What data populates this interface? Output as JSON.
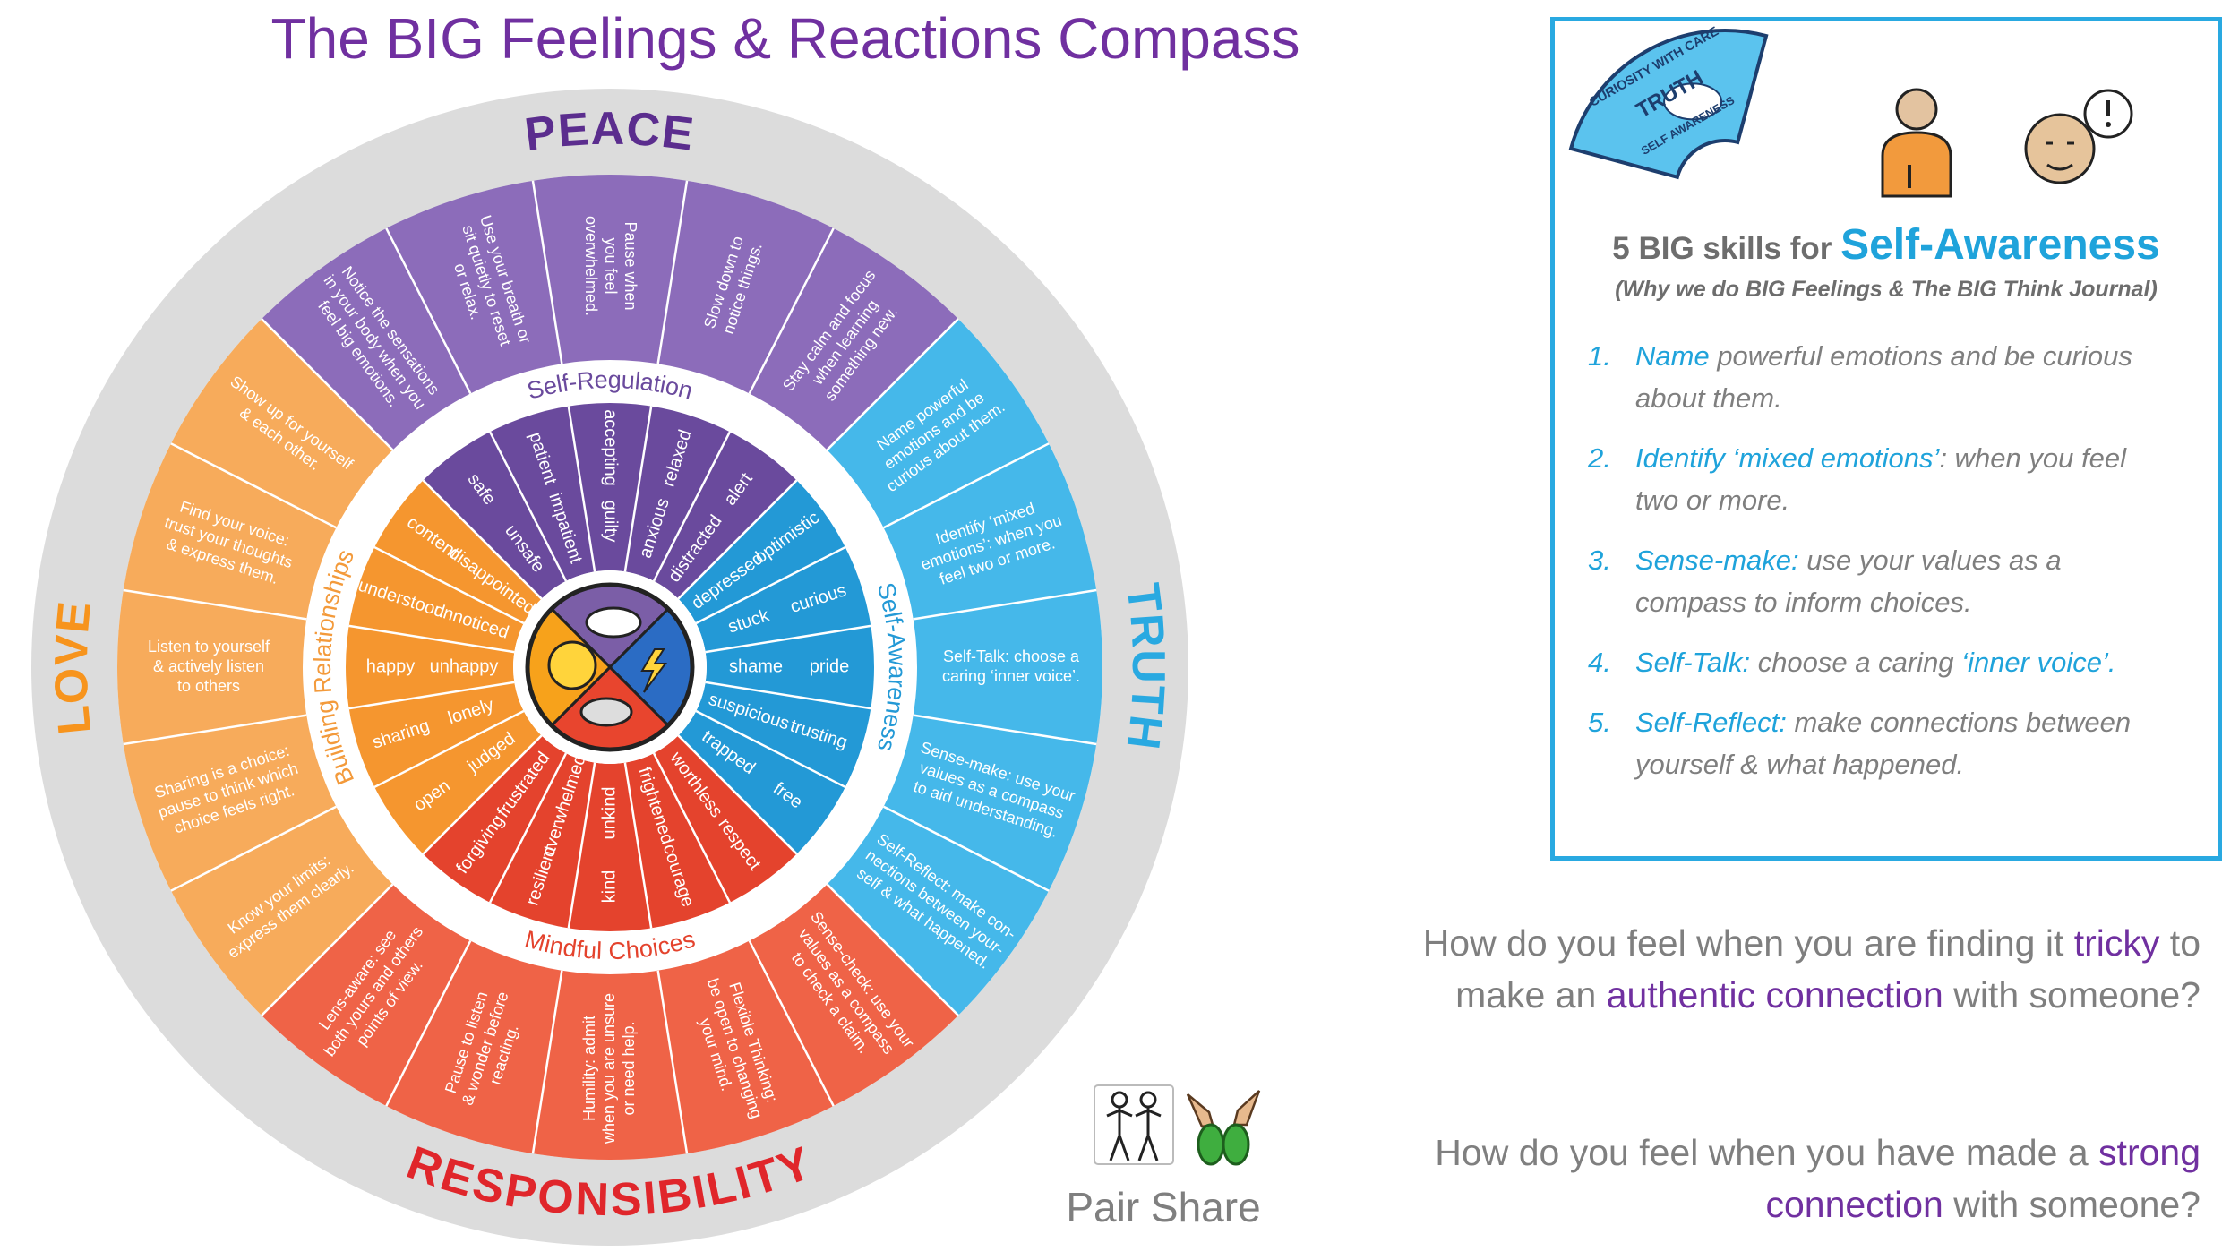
{
  "title": "The BIG Feelings & Reactions Compass",
  "compass": {
    "quadrants": [
      {
        "direction": "PEACE",
        "label": "Self-Regulation",
        "feelings": [
          {
            "outer": "safe",
            "inner": "unsafe"
          },
          {
            "outer": "patient",
            "inner": "impatient"
          },
          {
            "outer": "accepting",
            "inner": "guilty"
          },
          {
            "outer": "relaxed",
            "inner": "anxious"
          },
          {
            "outer": "alert",
            "inner": "distracted"
          }
        ],
        "skills": [
          [
            "Notice the sensations",
            "in your body when you",
            "feel big emotions."
          ],
          [
            "Use your breath or",
            "sit quietly to reset",
            "or relax."
          ],
          [
            "Pause when",
            "you feel",
            "overwhelmed."
          ],
          [
            "Slow down to",
            "notice things."
          ],
          [
            "Stay calm and focus",
            "when learning",
            "something new."
          ]
        ]
      },
      {
        "direction": "TRUTH",
        "label": "Self-Awareness",
        "feelings": [
          {
            "outer": "optimistic",
            "inner": "depressed"
          },
          {
            "outer": "curious",
            "inner": "stuck"
          },
          {
            "outer": "pride",
            "inner": "shame"
          },
          {
            "outer": "trusting",
            "inner": "suspicious"
          },
          {
            "outer": "free",
            "inner": "trapped"
          }
        ],
        "skills": [
          [
            "Name powerful",
            "emotions and be",
            "curious about them."
          ],
          [
            "Identify ‘mixed",
            "emotions’: when you",
            "feel two or more."
          ],
          [
            "Self-Talk: choose a",
            "caring ‘inner voice’."
          ],
          [
            "Sense-make: use your",
            "values as a compass",
            "to aid understanding."
          ],
          [
            "Self-Reflect: make con-",
            "nections between your-",
            "self & what happened."
          ]
        ]
      },
      {
        "direction": "RESPONSIBILITY",
        "label": "Mindful Choices",
        "feelings": [
          {
            "outer": "respect",
            "inner": "worthless"
          },
          {
            "outer": "courage",
            "inner": "frightened"
          },
          {
            "outer": "kind",
            "inner": "unkind"
          },
          {
            "outer": "resilient",
            "inner": "overwhelmed"
          },
          {
            "outer": "forgiving",
            "inner": "frustrated"
          }
        ],
        "skills": [
          [
            "Sense-check: use your",
            "values as a compass",
            "to check a claim."
          ],
          [
            "Flexible Thinking:",
            "be open to changing",
            "your mind."
          ],
          [
            "Humility: admit",
            "when you are unsure",
            "or need help."
          ],
          [
            "Pause to listen",
            "& wonder before",
            "reacting."
          ],
          [
            "Lens-aware: see",
            "both yours and others",
            "points of view."
          ]
        ]
      },
      {
        "direction": "LOVE",
        "label": "Building Relationships",
        "feelings": [
          {
            "outer": "open",
            "inner": "judged"
          },
          {
            "outer": "sharing",
            "inner": "lonely"
          },
          {
            "outer": "happy",
            "inner": "unhappy"
          },
          {
            "outer": "understood",
            "inner": "unnoticed"
          },
          {
            "outer": "content",
            "inner": "disappointed"
          }
        ],
        "skills": [
          [
            "Know your limits:",
            "express them clearly."
          ],
          [
            "Sharing is a choice:",
            "pause to think which",
            "choice feels right."
          ],
          [
            "Listen to yourself",
            "& actively listen",
            "to others"
          ],
          [
            "Find your voice:",
            "trust your thoughts",
            "& express them."
          ],
          [
            "Show up for yourself",
            "& each other."
          ]
        ]
      }
    ]
  },
  "panel": {
    "badge": [
      "CURIOSITY WITH CARE",
      "TRUTH",
      "SELF AWARENESS"
    ],
    "heading": "5 BIG skills for",
    "heading_accent": "Self-Awareness",
    "subheading": "(Why we do BIG Feelings &  The BIG Think Journal)",
    "items": [
      {
        "number": "1.",
        "segments": [
          {
            "text": "Name",
            "accent": true
          },
          {
            "text": " powerful emotions and be curious about them."
          }
        ]
      },
      {
        "number": "2.",
        "segments": [
          {
            "text": "Identify ‘mixed emotions’",
            "accent": true
          },
          {
            "text": ": when you feel two or more."
          }
        ]
      },
      {
        "number": "3.",
        "segments": [
          {
            "text": "Sense-make:",
            "accent": true
          },
          {
            "text": " use your values as a compass to inform choices."
          }
        ]
      },
      {
        "number": "4.",
        "segments": [
          {
            "text": "Self-Talk:",
            "accent": true
          },
          {
            "text": " choose a caring "
          },
          {
            "text": "‘inner voice’.",
            "accent": true
          }
        ]
      },
      {
        "number": "5.",
        "segments": [
          {
            "text": "Self-Reflect:",
            "accent": true
          },
          {
            "text": " make connections between yourself & what happened."
          }
        ]
      }
    ]
  },
  "questions": [
    {
      "segments": [
        {
          "text": "How do you feel when you are finding it "
        },
        {
          "text": "tricky",
          "accent": true
        },
        {
          "text": " to make an "
        },
        {
          "text": "authentic connection",
          "accent": true
        },
        {
          "text": " with someone?"
        }
      ]
    },
    {
      "segments": [
        {
          "text": "How do you feel when you have made a "
        },
        {
          "text": "strong connection",
          "accent": true
        },
        {
          "text": " with someone?"
        }
      ]
    }
  ],
  "pair_share": {
    "label": "Pair Share"
  }
}
